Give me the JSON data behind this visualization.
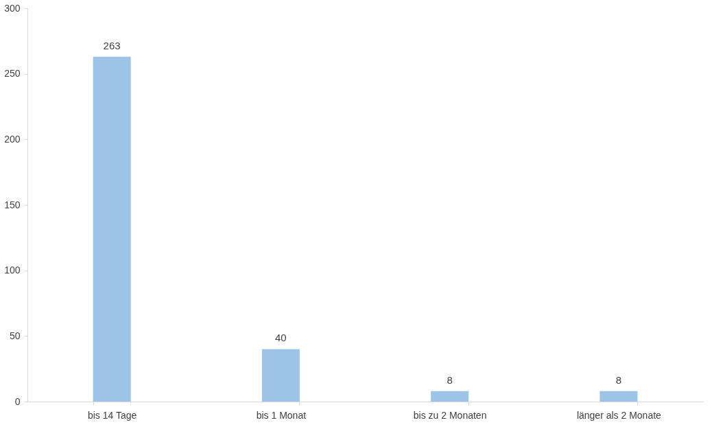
{
  "chart_data": {
    "type": "bar",
    "categories": [
      "bis 14 Tage",
      "bis 1 Monat",
      "bis zu 2 Monaten",
      "länger als 2 Monate"
    ],
    "values": [
      263,
      40,
      8,
      8
    ],
    "color": "#9dc3e6",
    "ylim": [
      0,
      300
    ],
    "yticks": [
      0,
      50,
      100,
      150,
      200,
      250,
      300
    ],
    "data_labels": true
  }
}
